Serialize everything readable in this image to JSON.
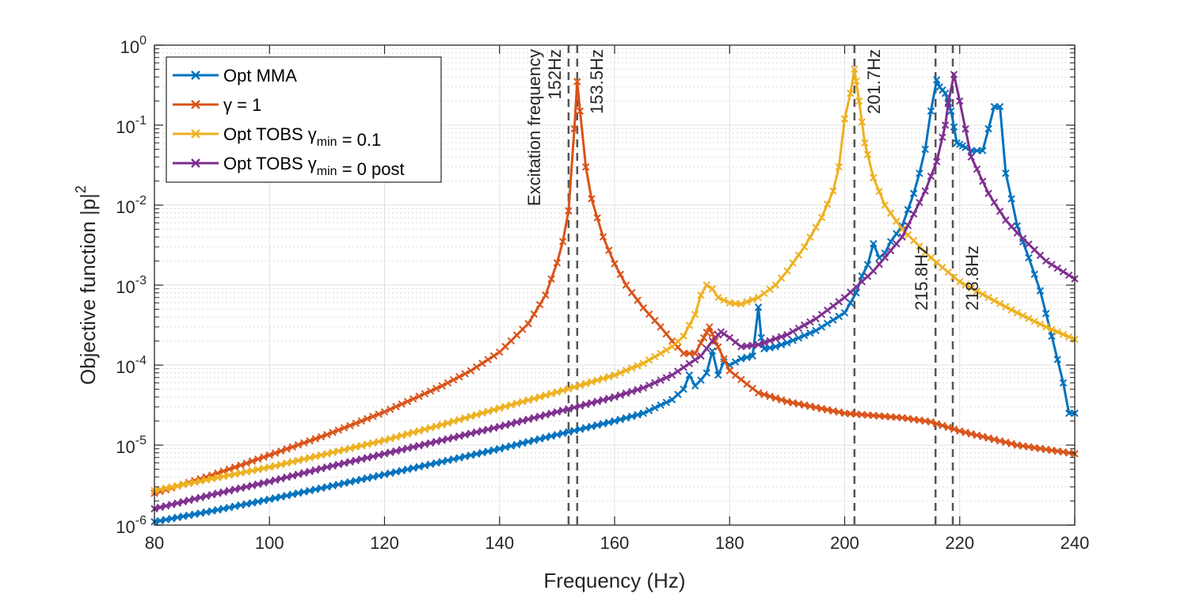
{
  "chart_data": {
    "type": "line",
    "xlabel": "Frequency (Hz)",
    "ylabel": "Objective function |p|",
    "ylabel_sup": "2",
    "xlim": [
      80,
      240
    ],
    "ylim": [
      1e-06,
      1
    ],
    "yscale": "log",
    "grid": true,
    "legend_position": "top-left",
    "xticks": [
      80,
      100,
      120,
      140,
      160,
      180,
      200,
      220,
      240
    ],
    "yticks": [
      {
        "value": 1e-06,
        "base": "10",
        "exp": "-6"
      },
      {
        "value": 1e-05,
        "base": "10",
        "exp": "-5"
      },
      {
        "value": 0.0001,
        "base": "10",
        "exp": "-4"
      },
      {
        "value": 0.001,
        "base": "10",
        "exp": "-3"
      },
      {
        "value": 0.01,
        "base": "10",
        "exp": "-2"
      },
      {
        "value": 0.1,
        "base": "10",
        "exp": "-1"
      },
      {
        "value": 1,
        "base": "10",
        "exp": "0"
      }
    ],
    "vlines": [
      {
        "x": 152,
        "label": "152Hz",
        "label2": "Excitation frequency"
      },
      {
        "x": 153.5,
        "label": "153.5Hz"
      },
      {
        "x": 201.7,
        "label": "201.7Hz"
      },
      {
        "x": 215.8,
        "label": "215.8Hz"
      },
      {
        "x": 218.8,
        "label": "218.8Hz"
      }
    ],
    "series": [
      {
        "legend": [
          {
            "t": "Opt MMA"
          }
        ],
        "color": "#0072BD",
        "points": [
          [
            80,
            1.1e-06
          ],
          [
            90,
            1.5e-06
          ],
          [
            100,
            2.1e-06
          ],
          [
            110,
            3e-06
          ],
          [
            120,
            4.3e-06
          ],
          [
            130,
            6.2e-06
          ],
          [
            140,
            9e-06
          ],
          [
            150,
            1.35e-05
          ],
          [
            160,
            2e-05
          ],
          [
            165,
            2.5e-05
          ],
          [
            170,
            3.7e-05
          ],
          [
            172,
            5e-05
          ],
          [
            173,
            7.5e-05
          ],
          [
            174,
            5.5e-05
          ],
          [
            175,
            6.5e-05
          ],
          [
            176,
            8e-05
          ],
          [
            177,
            0.00015
          ],
          [
            178,
            7.5e-05
          ],
          [
            179,
            0.00011
          ],
          [
            180,
            0.0001
          ],
          [
            182,
            0.00012
          ],
          [
            184,
            0.00013
          ],
          [
            184.8,
            0.00075
          ],
          [
            185.5,
            0.00022
          ],
          [
            186,
            0.00016
          ],
          [
            188,
            0.00017
          ],
          [
            190,
            0.00019
          ],
          [
            195,
            0.00027
          ],
          [
            200,
            0.00045
          ],
          [
            202,
            0.0008
          ],
          [
            203,
            0.0013
          ],
          [
            204,
            0.0018
          ],
          [
            205,
            0.0033
          ],
          [
            206,
            0.0022
          ],
          [
            207,
            0.0025
          ],
          [
            208,
            0.0035
          ],
          [
            210,
            0.0055
          ],
          [
            212,
            0.014
          ],
          [
            213,
            0.025
          ],
          [
            214,
            0.05
          ],
          [
            215,
            0.15
          ],
          [
            215.8,
            0.4
          ],
          [
            216.5,
            0.3
          ],
          [
            217.5,
            0.25
          ],
          [
            218.5,
            0.15
          ],
          [
            219.5,
            0.06
          ],
          [
            220.5,
            0.055
          ],
          [
            222,
            0.048
          ],
          [
            224,
            0.048
          ],
          [
            225,
            0.09
          ],
          [
            226,
            0.17
          ],
          [
            227,
            0.17
          ],
          [
            228,
            0.025
          ],
          [
            229,
            0.012
          ],
          [
            230,
            0.0055
          ],
          [
            232,
            0.0022
          ],
          [
            234,
            0.00085
          ],
          [
            236,
            0.00023
          ],
          [
            238,
            6e-05
          ],
          [
            239,
            2.5e-05
          ],
          [
            240,
            2.5e-05
          ]
        ]
      },
      {
        "legend": [
          {
            "t": "γ = 1"
          }
        ],
        "color": "#D95319",
        "points": [
          [
            80,
            2.5e-06
          ],
          [
            90,
            4.2e-06
          ],
          [
            100,
            7.5e-06
          ],
          [
            110,
            1.35e-05
          ],
          [
            120,
            2.6e-05
          ],
          [
            130,
            5.5e-05
          ],
          [
            135,
            8.5e-05
          ],
          [
            140,
            0.000145
          ],
          [
            145,
            0.00033
          ],
          [
            148,
            0.00075
          ],
          [
            150,
            0.0019
          ],
          [
            151,
            0.0035
          ],
          [
            152,
            0.0085
          ],
          [
            153,
            0.09
          ],
          [
            153.5,
            0.35
          ],
          [
            154,
            0.15
          ],
          [
            155,
            0.03
          ],
          [
            156,
            0.012
          ],
          [
            158,
            0.004
          ],
          [
            160,
            0.00185
          ],
          [
            162,
            0.001
          ],
          [
            165,
            0.00052
          ],
          [
            168,
            0.0003
          ],
          [
            170,
            0.0002
          ],
          [
            172,
            0.00014
          ],
          [
            174,
            0.00014
          ],
          [
            175.5,
            0.00022
          ],
          [
            176.5,
            0.0003
          ],
          [
            177.5,
            0.0002
          ],
          [
            180,
            8.5e-05
          ],
          [
            185,
            4.5e-05
          ],
          [
            190,
            3.5e-05
          ],
          [
            200,
            2.5e-05
          ],
          [
            210,
            2.2e-05
          ],
          [
            215,
            1.95e-05
          ],
          [
            220,
            1.5e-05
          ],
          [
            230,
            1e-05
          ],
          [
            240,
            7.8e-06
          ]
        ]
      },
      {
        "legend": [
          {
            "t": "Opt TOBS "
          },
          {
            "t": "γ",
            "sub": "min"
          },
          {
            "t": " = 0.1"
          }
        ],
        "color": "#EDB120",
        "points": [
          [
            80,
            2.7e-06
          ],
          [
            90,
            3.8e-06
          ],
          [
            100,
            5.3e-06
          ],
          [
            110,
            7.8e-06
          ],
          [
            120,
            1.15e-05
          ],
          [
            130,
            1.8e-05
          ],
          [
            140,
            2.9e-05
          ],
          [
            150,
            4.6e-05
          ],
          [
            160,
            7.5e-05
          ],
          [
            165,
            0.000105
          ],
          [
            170,
            0.00017
          ],
          [
            172,
            0.00023
          ],
          [
            174,
            0.00043
          ],
          [
            175,
            0.00075
          ],
          [
            176,
            0.001
          ],
          [
            177,
            0.0009
          ],
          [
            178,
            0.0007
          ],
          [
            180,
            0.0006
          ],
          [
            182,
            0.00058
          ],
          [
            185,
            0.0007
          ],
          [
            188,
            0.001
          ],
          [
            190,
            0.0015
          ],
          [
            193,
            0.003
          ],
          [
            196,
            0.007
          ],
          [
            198,
            0.015
          ],
          [
            199,
            0.03
          ],
          [
            200,
            0.12
          ],
          [
            201,
            0.25
          ],
          [
            201.7,
            0.5
          ],
          [
            202.5,
            0.2
          ],
          [
            203.5,
            0.06
          ],
          [
            205,
            0.022
          ],
          [
            207,
            0.01
          ],
          [
            210,
            0.005
          ],
          [
            215,
            0.0022
          ],
          [
            220,
            0.0011
          ],
          [
            225,
            0.0007
          ],
          [
            230,
            0.00045
          ],
          [
            235,
            0.0003
          ],
          [
            240,
            0.00021
          ]
        ]
      },
      {
        "legend": [
          {
            "t": "Opt TOBS "
          },
          {
            "t": "γ",
            "sub": "min"
          },
          {
            "t": " = 0 post"
          }
        ],
        "color": "#7E2F8E",
        "points": [
          [
            80,
            1.6e-06
          ],
          [
            90,
            2.4e-06
          ],
          [
            100,
            3.5e-06
          ],
          [
            110,
            5.3e-06
          ],
          [
            120,
            7.8e-06
          ],
          [
            130,
            1.15e-05
          ],
          [
            140,
            1.7e-05
          ],
          [
            150,
            2.6e-05
          ],
          [
            160,
            4e-05
          ],
          [
            165,
            5.2e-05
          ],
          [
            170,
            7.5e-05
          ],
          [
            175,
            0.00013
          ],
          [
            177,
            0.0002
          ],
          [
            178.5,
            0.00026
          ],
          [
            180,
            0.00022
          ],
          [
            182,
            0.00017
          ],
          [
            185,
            0.00018
          ],
          [
            190,
            0.00024
          ],
          [
            195,
            0.00038
          ],
          [
            200,
            0.0007
          ],
          [
            205,
            0.0015
          ],
          [
            210,
            0.004
          ],
          [
            214,
            0.015
          ],
          [
            216,
            0.035
          ],
          [
            217.5,
            0.1
          ],
          [
            218.8,
            0.5
          ],
          [
            220,
            0.2
          ],
          [
            222,
            0.04
          ],
          [
            225,
            0.014
          ],
          [
            228,
            0.0065
          ],
          [
            230,
            0.0045
          ],
          [
            235,
            0.002
          ],
          [
            240,
            0.0012
          ]
        ]
      }
    ]
  }
}
